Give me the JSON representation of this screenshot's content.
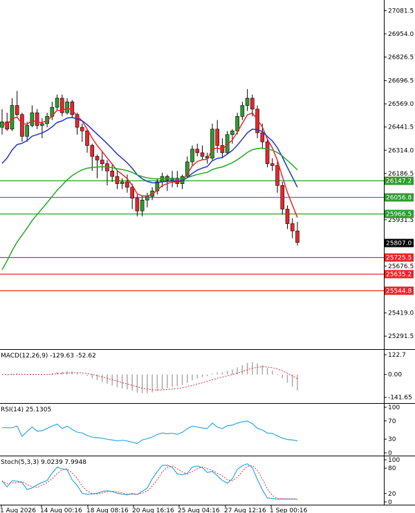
{
  "chart_data": [
    {
      "panel": "price",
      "type": "candlestick",
      "y_ticks": [
        "27081.5",
        "26954.0",
        "26826.5",
        "26696.5",
        "26569.0",
        "26441.5",
        "26314.0",
        "26186.5",
        "25931.5",
        "25676.5",
        "25419.0",
        "25291.5"
      ],
      "ylim": [
        25220,
        27140
      ],
      "current_price": {
        "label": "25807.0",
        "value": 25807.0
      },
      "levels": [
        {
          "label": "26147.2",
          "value": 26147.2,
          "color": "#2e9b2e"
        },
        {
          "label": "26056.8",
          "value": 26056.8,
          "color": "#2e9b2e"
        },
        {
          "label": "25966.5",
          "value": 25966.5,
          "color": "#2e9b2e"
        },
        {
          "label": "25725.5",
          "value": 25725.5,
          "color": "#e8262a"
        },
        {
          "label": "25635.2",
          "value": 25635.2,
          "color": "#e8262a"
        },
        {
          "label": "25544.8",
          "value": 25544.8,
          "color": "#e8262a"
        }
      ],
      "colors": {
        "bull": "#2e9b2e",
        "bear": "#e8262a",
        "ma_fast": "#e8262a",
        "ma_mid": "#2233cc",
        "ma_slow": "#22a822"
      },
      "candles": [
        [
          26440,
          26540,
          26400,
          26470
        ],
        [
          26470,
          26520,
          26420,
          26430
        ],
        [
          26430,
          26600,
          26420,
          26560
        ],
        [
          26560,
          26640,
          26500,
          26510
        ],
        [
          26510,
          26520,
          26360,
          26390
        ],
        [
          26390,
          26470,
          26360,
          26450
        ],
        [
          26450,
          26560,
          26440,
          26520
        ],
        [
          26520,
          26540,
          26430,
          26450
        ],
        [
          26450,
          26490,
          26380,
          26460
        ],
        [
          26460,
          26520,
          26440,
          26500
        ],
        [
          26500,
          26580,
          26480,
          26550
        ],
        [
          26550,
          26620,
          26530,
          26600
        ],
        [
          26600,
          26620,
          26500,
          26520
        ],
        [
          26520,
          26600,
          26510,
          26580
        ],
        [
          26580,
          26590,
          26490,
          26510
        ],
        [
          26510,
          26520,
          26400,
          26440
        ],
        [
          26440,
          26460,
          26360,
          26420
        ],
        [
          26420,
          26430,
          26300,
          26340
        ],
        [
          26340,
          26350,
          26200,
          26280
        ],
        [
          26280,
          26290,
          26160,
          26260
        ],
        [
          26260,
          26310,
          26200,
          26240
        ],
        [
          26240,
          26260,
          26120,
          26200
        ],
        [
          26200,
          26240,
          26140,
          26170
        ],
        [
          26170,
          26200,
          26100,
          26130
        ],
        [
          26130,
          26160,
          26100,
          26140
        ],
        [
          26140,
          26180,
          26080,
          26110
        ],
        [
          26110,
          26130,
          25990,
          26050
        ],
        [
          26050,
          26070,
          25950,
          25980
        ],
        [
          25980,
          26060,
          25950,
          26040
        ],
        [
          26040,
          26080,
          26000,
          26060
        ],
        [
          26060,
          26110,
          26040,
          26090
        ],
        [
          26090,
          26160,
          26070,
          26140
        ],
        [
          26140,
          26190,
          26110,
          26170
        ],
        [
          26170,
          26180,
          26090,
          26150
        ],
        [
          26150,
          26200,
          26110,
          26160
        ],
        [
          26160,
          26200,
          26110,
          26130
        ],
        [
          26130,
          26180,
          26100,
          26170
        ],
        [
          26170,
          26280,
          26160,
          26250
        ],
        [
          26250,
          26340,
          26230,
          26320
        ],
        [
          26320,
          26350,
          26280,
          26300
        ],
        [
          26300,
          26340,
          26260,
          26280
        ],
        [
          26280,
          26300,
          26240,
          26270
        ],
        [
          26270,
          26460,
          26260,
          26430
        ],
        [
          26430,
          26480,
          26300,
          26340
        ],
        [
          26340,
          26380,
          26270,
          26300
        ],
        [
          26300,
          26420,
          26290,
          26400
        ],
        [
          26400,
          26430,
          26350,
          26420
        ],
        [
          26420,
          26520,
          26400,
          26500
        ],
        [
          26500,
          26580,
          26480,
          26560
        ],
        [
          26560,
          26650,
          26530,
          26600
        ],
        [
          26600,
          26620,
          26500,
          26540
        ],
        [
          26540,
          26560,
          26380,
          26410
        ],
        [
          26410,
          26460,
          26320,
          26360
        ],
        [
          26360,
          26380,
          26220,
          26240
        ],
        [
          26240,
          26270,
          26200,
          26230
        ],
        [
          26230,
          26260,
          26080,
          26120
        ],
        [
          26120,
          26140,
          25960,
          25990
        ],
        [
          25990,
          26010,
          25880,
          25910
        ],
        [
          25910,
          25940,
          25830,
          25870
        ],
        [
          25870,
          25920,
          25790,
          25807
        ]
      ]
    },
    {
      "panel": "macd",
      "type": "histogram+line",
      "label": "MACD(12,26,9) -129.63 -52.62",
      "y_ticks": [
        "122.7",
        "0.00",
        "-141.65"
      ],
      "ylim": [
        -160,
        140
      ]
    },
    {
      "panel": "rsi",
      "type": "line",
      "label": "RSI(14) 25.1305",
      "y_ticks": [
        "100",
        "70",
        "30",
        "0"
      ],
      "ylim": [
        0,
        100
      ]
    },
    {
      "panel": "stoch",
      "type": "line",
      "label": "Stoch(5,3,3) 9.0239 7.9948",
      "y_ticks": [
        "100",
        "80",
        "20",
        "0"
      ],
      "ylim": [
        0,
        100
      ]
    }
  ],
  "x_ticks": [
    "1 Aug 2026",
    "14 Aug 00:16",
    "18 Aug 08:16",
    "20 Aug 16:16",
    "25 Aug 04:16",
    "27 Aug 12:16",
    "1 Sep 00:16"
  ]
}
